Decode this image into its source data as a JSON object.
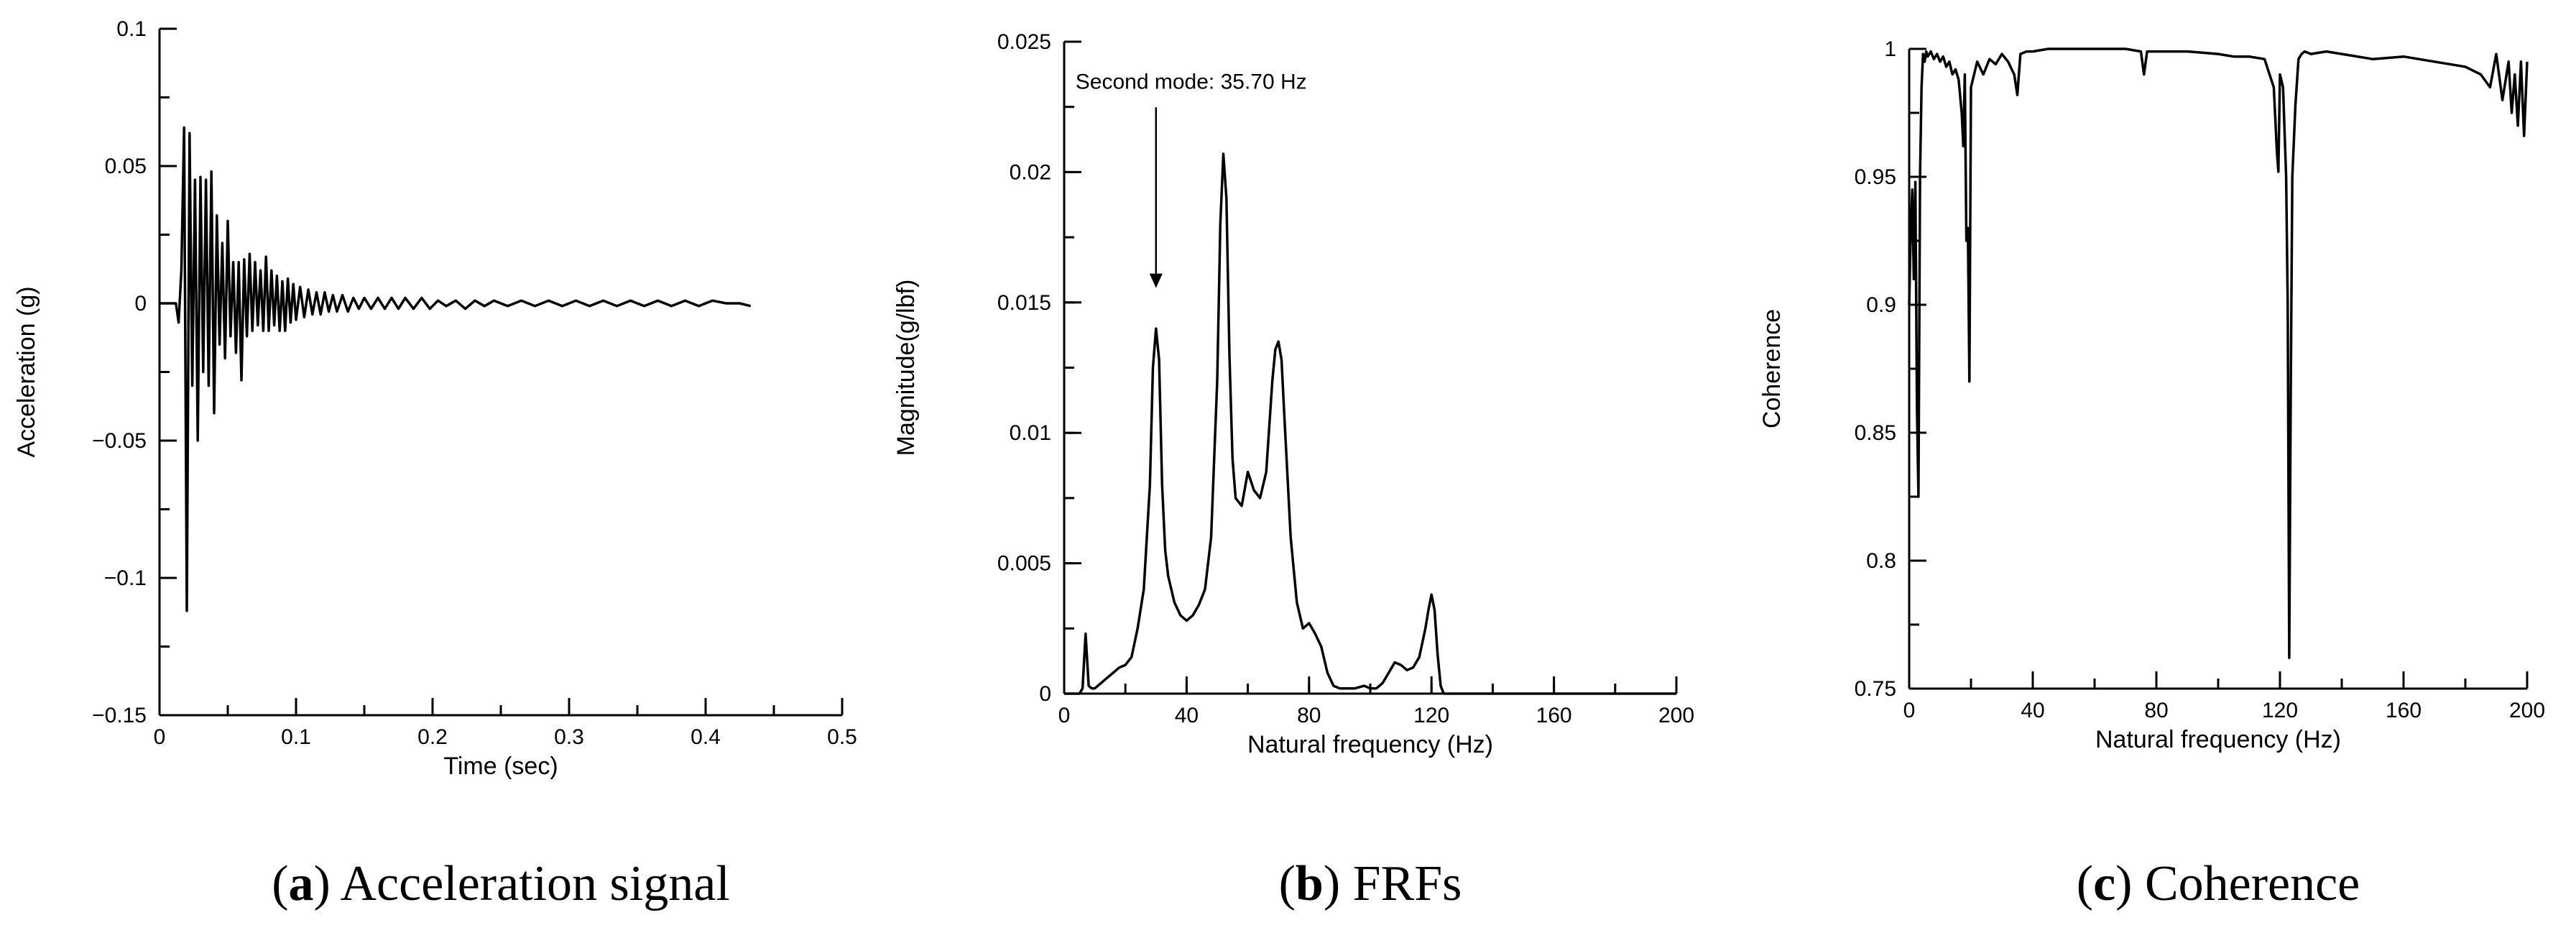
{
  "chart_data": [
    {
      "type": "line",
      "caption_letter": "a",
      "caption_text": "Acceleration signal",
      "xlabel": "Time (sec)",
      "ylabel": "Acceleration (g)",
      "xlim": [
        0,
        0.5
      ],
      "ylim": [
        -0.15,
        0.1
      ],
      "x_ticks": [
        0,
        0.1,
        0.2,
        0.3,
        0.4,
        0.5
      ],
      "x_tick_labels": [
        "0",
        "0.1",
        "0.2",
        "0.3",
        "0.4",
        "0.5"
      ],
      "x_minor_step": 0.05,
      "y_ticks": [
        -0.15,
        -0.1,
        -0.05,
        0,
        0.05,
        0.1
      ],
      "y_tick_labels": [
        "−0.15",
        "−0.1",
        "−0.05",
        "0",
        "0.05",
        "0.1"
      ],
      "y_minor_step": 0.025,
      "series": [
        {
          "x": [
            0,
            0.012,
            0.014,
            0.016,
            0.018,
            0.02,
            0.022,
            0.024,
            0.026,
            0.028,
            0.03,
            0.032,
            0.034,
            0.036,
            0.038,
            0.04,
            0.042,
            0.044,
            0.046,
            0.048,
            0.05,
            0.052,
            0.054,
            0.056,
            0.058,
            0.06,
            0.062,
            0.064,
            0.066,
            0.068,
            0.07,
            0.072,
            0.074,
            0.076,
            0.078,
            0.08,
            0.082,
            0.084,
            0.086,
            0.088,
            0.09,
            0.092,
            0.094,
            0.096,
            0.098,
            0.1,
            0.103,
            0.106,
            0.109,
            0.112,
            0.115,
            0.118,
            0.121,
            0.124,
            0.127,
            0.13,
            0.134,
            0.138,
            0.142,
            0.146,
            0.15,
            0.155,
            0.16,
            0.165,
            0.17,
            0.175,
            0.18,
            0.186,
            0.192,
            0.198,
            0.204,
            0.21,
            0.217,
            0.224,
            0.231,
            0.238,
            0.245,
            0.255,
            0.265,
            0.275,
            0.285,
            0.295,
            0.305,
            0.315,
            0.325,
            0.335,
            0.345,
            0.355,
            0.365,
            0.375,
            0.385,
            0.395,
            0.405,
            0.415,
            0.425,
            0.433
          ],
          "y": [
            0,
            0,
            -0.007,
            0.012,
            0.064,
            -0.112,
            0.062,
            -0.03,
            0.045,
            -0.05,
            0.046,
            -0.025,
            0.045,
            -0.03,
            0.048,
            -0.04,
            0.032,
            -0.015,
            0.022,
            -0.02,
            0.03,
            -0.012,
            0.015,
            -0.018,
            0.015,
            -0.028,
            0.016,
            -0.012,
            0.018,
            -0.01,
            0.015,
            -0.008,
            0.012,
            -0.01,
            0.017,
            -0.01,
            0.012,
            -0.008,
            0.01,
            -0.01,
            0.008,
            -0.01,
            0.009,
            -0.007,
            0.007,
            -0.006,
            0.006,
            -0.005,
            0.005,
            -0.004,
            0.004,
            -0.004,
            0.004,
            -0.003,
            0.003,
            -0.003,
            0.003,
            -0.003,
            0.002,
            -0.002,
            0.002,
            -0.002,
            0.002,
            -0.002,
            0.002,
            -0.002,
            0.002,
            -0.002,
            0.002,
            -0.002,
            0.001,
            -0.001,
            0.001,
            -0.002,
            0.001,
            -0.001,
            0.001,
            -0.001,
            0.001,
            -0.001,
            0.001,
            -0.001,
            0.001,
            -0.001,
            0.001,
            -0.001,
            0.001,
            -0.001,
            0.001,
            -0.001,
            0.001,
            -0.001,
            0.001,
            0.0,
            0.0,
            -0.001
          ]
        }
      ]
    },
    {
      "type": "line",
      "caption_letter": "b",
      "caption_text": "FRFs",
      "xlabel": "Natural frequency (Hz)",
      "ylabel": "Magnitude(g/lbf)",
      "xlim": [
        0,
        200
      ],
      "ylim": [
        0,
        0.025
      ],
      "x_ticks": [
        0,
        40,
        80,
        120,
        160,
        200
      ],
      "x_tick_labels": [
        "0",
        "40",
        "80",
        "120",
        "160",
        "200"
      ],
      "x_minor_step": 20,
      "y_ticks": [
        0,
        0.005,
        0.01,
        0.015,
        0.02,
        0.025
      ],
      "y_tick_labels": [
        "0",
        "0.005",
        "0.01",
        "0.015",
        "0.02",
        "0.025"
      ],
      "y_minor_step": 0.0025,
      "annotation": {
        "text": "Second mode: 35.70 Hz",
        "x": 30,
        "y": 0.0155,
        "text_y": 0.0232
      },
      "series": [
        {
          "x": [
            0,
            5,
            6,
            7,
            8,
            9,
            10,
            12,
            14,
            16,
            18,
            20,
            22,
            24,
            26,
            28,
            29,
            30,
            31,
            32,
            33,
            34,
            36,
            38,
            40,
            42,
            44,
            46,
            48,
            50,
            51,
            52,
            53,
            54,
            55,
            56,
            58,
            60,
            62,
            64,
            66,
            68,
            69,
            70,
            71,
            72,
            74,
            76,
            78,
            80,
            82,
            84,
            86,
            88,
            90,
            92,
            95,
            98,
            100,
            102,
            104,
            106,
            108,
            110,
            112,
            114,
            116,
            118,
            119,
            120,
            121,
            122,
            123,
            124,
            200
          ],
          "y": [
            0,
            0,
            0.0002,
            0.0023,
            0.0003,
            0.0002,
            0.0002,
            0.0004,
            0.0006,
            0.0008,
            0.001,
            0.0011,
            0.0014,
            0.0025,
            0.004,
            0.008,
            0.0125,
            0.014,
            0.0128,
            0.008,
            0.0055,
            0.0045,
            0.0035,
            0.003,
            0.0028,
            0.003,
            0.0034,
            0.004,
            0.006,
            0.012,
            0.018,
            0.0207,
            0.019,
            0.013,
            0.009,
            0.0075,
            0.0072,
            0.0085,
            0.0078,
            0.0075,
            0.0085,
            0.012,
            0.0132,
            0.0135,
            0.0128,
            0.0105,
            0.006,
            0.0035,
            0.0025,
            0.0027,
            0.0023,
            0.0018,
            0.0008,
            0.0003,
            0.0002,
            0.0002,
            0.0002,
            0.0003,
            0.0002,
            0.0002,
            0.0004,
            0.0008,
            0.0012,
            0.0011,
            0.0009,
            0.001,
            0.0014,
            0.0025,
            0.0032,
            0.0038,
            0.0032,
            0.0015,
            0.0003,
            0,
            0
          ]
        }
      ]
    },
    {
      "type": "line",
      "caption_letter": "c",
      "caption_text": "Coherence",
      "xlabel": "Natural frequency (Hz)",
      "ylabel": "Coherence",
      "xlim": [
        0,
        200
      ],
      "ylim": [
        0.75,
        1
      ],
      "x_ticks": [
        0,
        40,
        80,
        120,
        160,
        200
      ],
      "x_tick_labels": [
        "0",
        "40",
        "80",
        "120",
        "160",
        "200"
      ],
      "x_minor_step": 20,
      "y_ticks": [
        0.75,
        0.8,
        0.85,
        0.9,
        0.95,
        1
      ],
      "y_tick_labels": [
        "0.75",
        "0.8",
        "0.85",
        "0.9",
        "0.95",
        "1"
      ],
      "y_minor_step": 0.025,
      "series": [
        {
          "x": [
            0,
            0.5,
            1,
            1.5,
            2,
            2.5,
            3,
            3.5,
            4,
            4.5,
            5,
            5.5,
            6,
            7,
            8,
            9,
            10,
            11,
            12,
            13,
            14,
            15,
            16,
            17,
            17.5,
            18,
            18.5,
            19,
            19.5,
            20,
            21,
            22,
            24,
            26,
            28,
            30,
            32,
            34,
            35,
            36,
            38,
            40,
            45,
            50,
            60,
            70,
            75,
            76,
            77,
            80,
            90,
            100,
            105,
            110,
            115,
            118,
            119,
            119.5,
            120,
            121,
            122,
            122.5,
            123,
            123.5,
            124,
            125,
            126,
            127,
            128,
            130,
            135,
            140,
            150,
            160,
            170,
            180,
            185,
            188,
            190,
            192,
            194,
            195,
            196,
            197,
            198,
            199,
            200
          ],
          "y": [
            0.9,
            0.93,
            0.945,
            0.91,
            0.948,
            0.86,
            0.825,
            0.95,
            0.985,
            0.998,
            0.995,
            0.999,
            0.997,
            0.999,
            0.996,
            0.998,
            0.995,
            0.997,
            0.993,
            0.995,
            0.99,
            0.992,
            0.988,
            0.975,
            0.962,
            0.99,
            0.925,
            0.93,
            0.87,
            0.985,
            0.99,
            0.995,
            0.99,
            0.996,
            0.994,
            0.998,
            0.995,
            0.99,
            0.982,
            0.998,
            0.999,
            0.999,
            1.0,
            1.0,
            1.0,
            1.0,
            0.999,
            0.99,
            0.999,
            0.999,
            0.999,
            0.998,
            0.997,
            0.997,
            0.996,
            0.985,
            0.96,
            0.952,
            0.99,
            0.985,
            0.95,
            0.9,
            0.762,
            0.87,
            0.95,
            0.978,
            0.996,
            0.998,
            0.999,
            0.998,
            0.999,
            0.998,
            0.996,
            0.997,
            0.995,
            0.993,
            0.99,
            0.985,
            0.998,
            0.98,
            0.995,
            0.975,
            0.99,
            0.97,
            0.995,
            0.966,
            0.995
          ]
        }
      ]
    }
  ]
}
